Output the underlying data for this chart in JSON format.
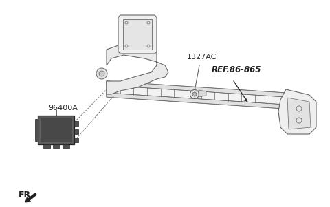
{
  "bg_color": "#ffffff",
  "line_color": "#666666",
  "dark_color": "#222222",
  "mid_color": "#888888",
  "label_1327AC": "1327AC",
  "label_96400A": "96400A",
  "label_REF": "REF.86-865",
  "label_FR": "FR.",
  "fig_width": 4.8,
  "fig_height": 3.01,
  "dpi": 100
}
